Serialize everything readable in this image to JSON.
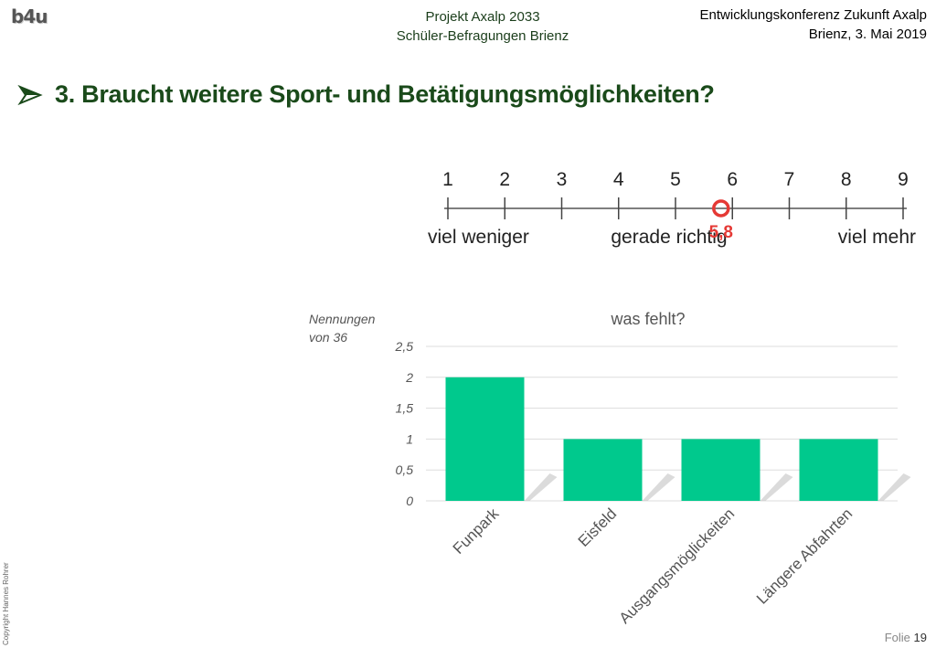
{
  "logo": "b4u",
  "header": {
    "project_line1": "Projekt Axalp 2033",
    "project_line2": "Schüler-Befragungen Brienz",
    "event_line1": "Entwicklungskonferenz Zukunft Axalp",
    "event_line2": "Brienz, 3. Mai 2019"
  },
  "title": "3. Braucht weitere Sport- und Betätigungsmöglichkeiten?",
  "scale": {
    "ticks": [
      "1",
      "2",
      "3",
      "4",
      "5",
      "6",
      "7",
      "8",
      "9"
    ],
    "labels": {
      "left": "viel weniger",
      "middle": "gerade richtig",
      "right": "viel mehr"
    },
    "mean": 5.8,
    "mean_label": "5,8",
    "marker_color": "#e53935"
  },
  "chart_data": {
    "type": "bar",
    "title": "was fehlt?",
    "ylabel_line1": "Nennungen",
    "ylabel_line2": "von 36",
    "categories": [
      "Funpark",
      "Eisfeld",
      "Ausgangsmöglickeiten",
      "Längere Abfahrten"
    ],
    "values": [
      2,
      1,
      1,
      1
    ],
    "ylim": [
      0,
      2.5
    ],
    "yticks": [
      0,
      0.5,
      1,
      1.5,
      2,
      2.5
    ],
    "ytick_labels": [
      "0",
      "0,5",
      "1",
      "1,5",
      "2",
      "2,5"
    ],
    "grid": true,
    "bar_color": "#00c98d"
  },
  "footer": {
    "copyright": "Copyright Hannes Rohrer",
    "folie_label": "Folie",
    "folie_number": "19"
  }
}
